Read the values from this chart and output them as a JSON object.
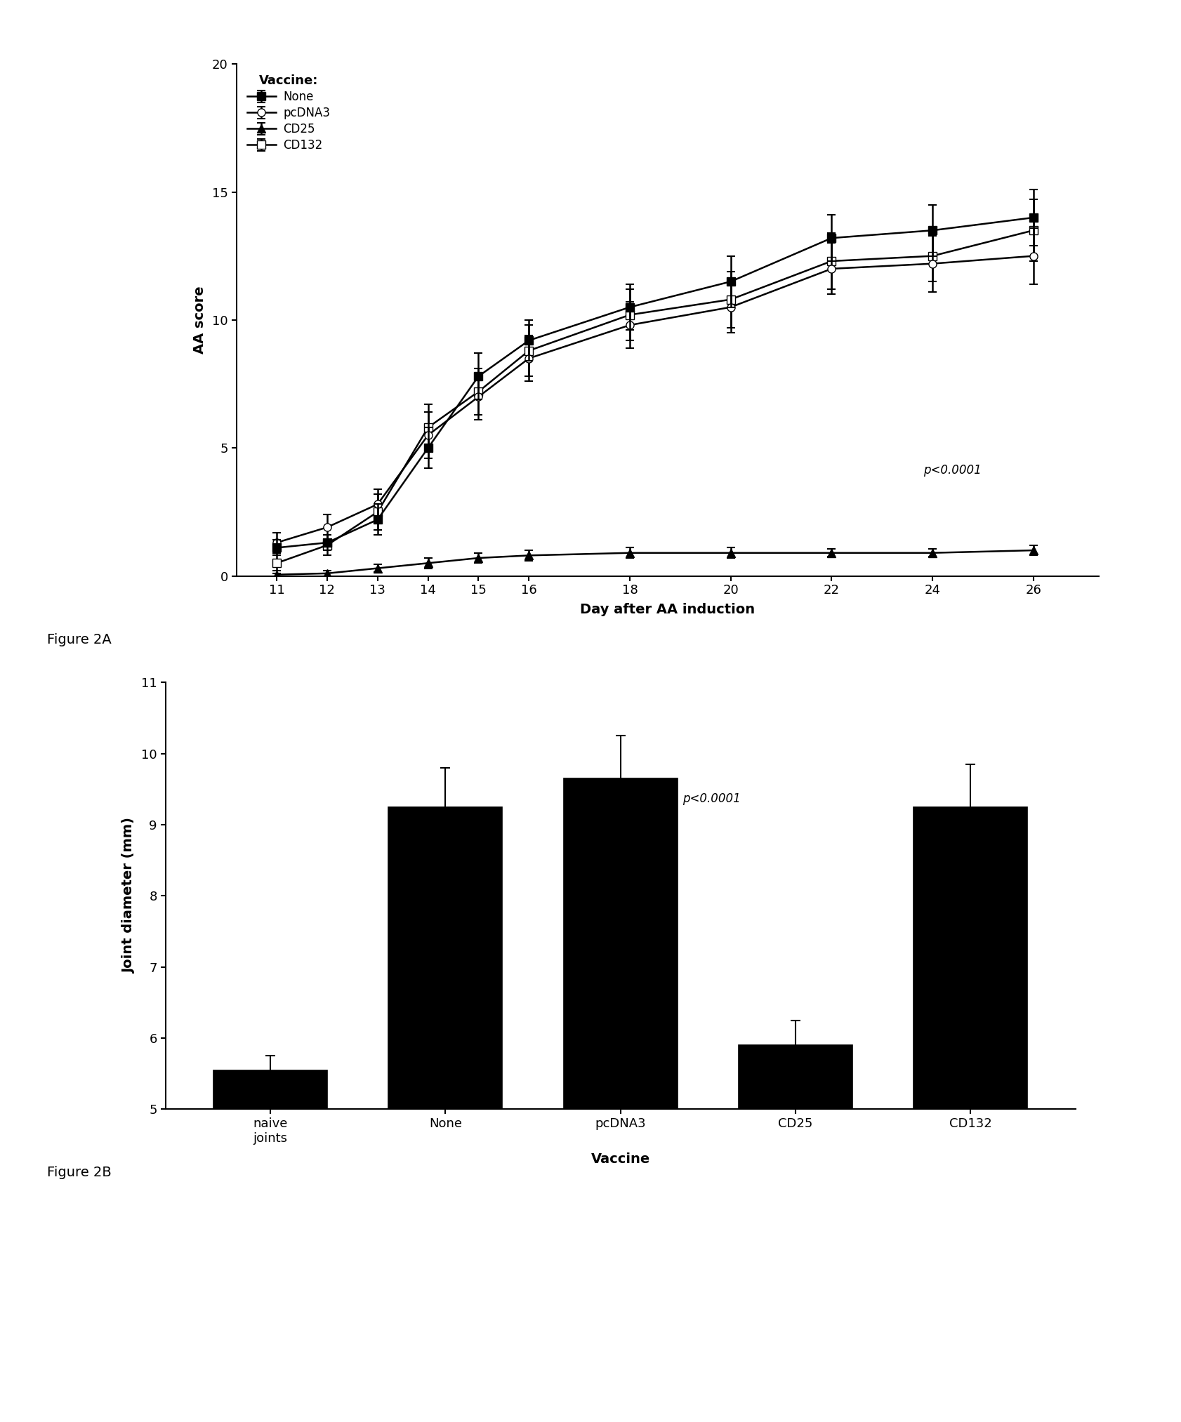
{
  "fig2a": {
    "days": [
      11,
      12,
      13,
      14,
      15,
      16,
      18,
      20,
      22,
      24,
      26
    ],
    "none_mean": [
      1.1,
      1.3,
      2.2,
      5.0,
      7.8,
      9.2,
      10.5,
      11.5,
      13.2,
      13.5,
      14.0
    ],
    "none_err": [
      0.3,
      0.3,
      0.6,
      0.8,
      0.9,
      0.8,
      0.9,
      1.0,
      0.9,
      1.0,
      1.1
    ],
    "pcdna3_mean": [
      1.3,
      1.9,
      2.8,
      5.5,
      7.0,
      8.5,
      9.8,
      10.5,
      12.0,
      12.2,
      12.5
    ],
    "pcdna3_err": [
      0.4,
      0.5,
      0.6,
      0.9,
      0.9,
      0.9,
      0.9,
      1.0,
      1.0,
      1.1,
      1.1
    ],
    "cd25_mean": [
      0.05,
      0.1,
      0.3,
      0.5,
      0.7,
      0.8,
      0.9,
      0.9,
      0.9,
      0.9,
      1.0
    ],
    "cd25_err": [
      0.05,
      0.1,
      0.15,
      0.2,
      0.2,
      0.2,
      0.2,
      0.2,
      0.15,
      0.15,
      0.2
    ],
    "cd132_mean": [
      0.5,
      1.2,
      2.5,
      5.8,
      7.2,
      8.8,
      10.2,
      10.8,
      12.3,
      12.5,
      13.5
    ],
    "cd132_err": [
      0.3,
      0.4,
      0.7,
      0.9,
      0.9,
      1.0,
      1.0,
      1.1,
      1.1,
      1.0,
      1.2
    ],
    "ylabel": "AA score",
    "xlabel": "Day after AA induction",
    "ylim": [
      0,
      20
    ],
    "yticks": [
      0,
      5,
      10,
      15,
      20
    ],
    "pvalue": "p<0.0001",
    "legend_title": "Vaccine:"
  },
  "fig2b": {
    "categories": [
      "naive\njoints",
      "None",
      "pcDNA3",
      "CD25",
      "CD132"
    ],
    "values": [
      5.55,
      9.25,
      9.65,
      5.9,
      9.25
    ],
    "errors": [
      0.2,
      0.55,
      0.6,
      0.35,
      0.6
    ],
    "ylabel": "Joint diameter (mm)",
    "xlabel": "Vaccine",
    "ylim": [
      5,
      11
    ],
    "yticks": [
      5,
      6,
      7,
      8,
      9,
      10,
      11
    ],
    "pvalue": "p<0.0001",
    "bar_color": "#000000"
  },
  "fig2a_label": "Figure 2A",
  "fig2b_label": "Figure 2B",
  "background_color": "#ffffff"
}
